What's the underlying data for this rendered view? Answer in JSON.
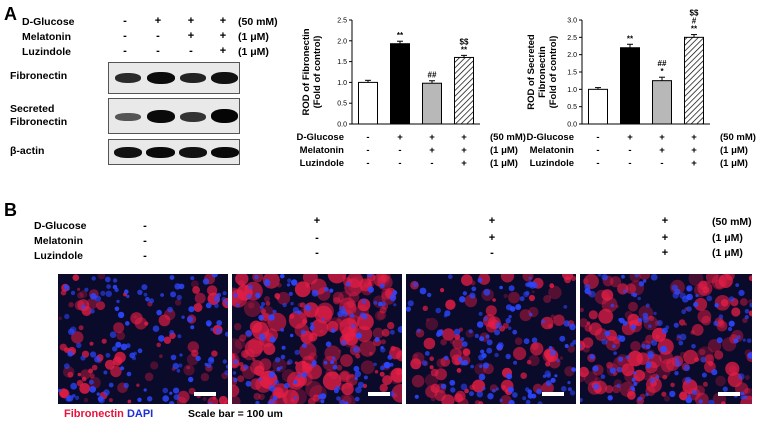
{
  "panels": {
    "a": "A",
    "b": "B"
  },
  "conditions": {
    "dglucose": "D-Glucose",
    "melatonin": "Melatonin",
    "luzindole": "Luzindole",
    "dglucose_dose": "(50 mM)",
    "melatonin_dose": "(1 μM)",
    "luzindole_dose": "(1 μM)",
    "signs": {
      "dglucose": [
        "-",
        "+",
        "+",
        "+"
      ],
      "melatonin": [
        "-",
        "-",
        "+",
        "+"
      ],
      "luzindole": [
        "-",
        "-",
        "-",
        "+"
      ]
    }
  },
  "blot": {
    "rows": [
      "Fibronectin",
      "Secreted Fibronectin",
      "β-actin"
    ]
  },
  "chart_data": [
    {
      "type": "bar",
      "categories": [
        "Control",
        "D-Glucose",
        "D-Glucose + Melatonin",
        "D-Glucose + Melatonin + Luzindole"
      ],
      "values": [
        1.0,
        1.93,
        0.98,
        1.6
      ],
      "errors": [
        0.05,
        0.06,
        0.06,
        0.05
      ],
      "annotations": [
        "",
        "**",
        "##",
        "$$\n**"
      ],
      "ylabel": "ROD of Fibronectin\n(Fold of control)",
      "ylim": [
        0,
        2.5
      ],
      "yticks": [
        "0.0",
        "0.5",
        "1.0",
        "1.5",
        "2.0",
        "2.5"
      ],
      "ytick_values": [
        0,
        0.5,
        1.0,
        1.5,
        2.0,
        2.5
      ],
      "fills": [
        "#ffffff",
        "#000000",
        "#b8b8b8",
        "hatch"
      ]
    },
    {
      "type": "bar",
      "categories": [
        "Control",
        "D-Glucose",
        "D-Glucose + Melatonin",
        "D-Glucose + Melatonin + Luzindole"
      ],
      "values": [
        1.0,
        2.2,
        1.25,
        2.5
      ],
      "errors": [
        0.05,
        0.1,
        0.1,
        0.08
      ],
      "annotations": [
        "",
        "**",
        "##\n*",
        "$$\n#\n**"
      ],
      "ylabel": "ROD of Secreted\nFibronectin\n(Fold of control)",
      "ylim": [
        0,
        3.0
      ],
      "yticks": [
        "0.0",
        "0.5",
        "1.0",
        "1.5",
        "2.0",
        "2.5",
        "3.0"
      ],
      "ytick_values": [
        0,
        0.5,
        1.0,
        1.5,
        2.0,
        2.5,
        3.0
      ],
      "fills": [
        "#ffffff",
        "#000000",
        "#b8b8b8",
        "hatch"
      ]
    }
  ],
  "micrograph": {
    "stain_red": "Fibronectin",
    "stain_blue": "DAPI",
    "scale": "Scale bar = 100 um",
    "red_density": [
      0.35,
      1.0,
      0.45,
      0.75
    ]
  }
}
